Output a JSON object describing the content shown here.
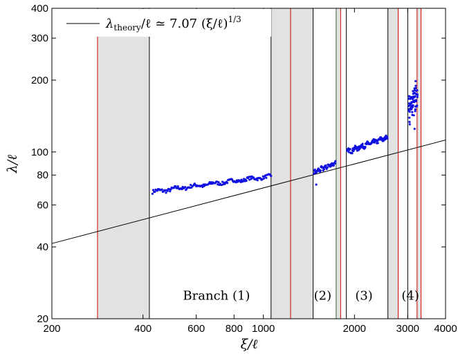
{
  "chart_data": {
    "type": "scatter",
    "title": "",
    "xlabel": "ξ/ℓ",
    "ylabel": "λ/ℓ",
    "xscale": "log",
    "yscale": "log",
    "xlim": [
      200,
      4000
    ],
    "ylim": [
      20,
      400
    ],
    "grid": false,
    "legend": {
      "position": "top-left",
      "entries": [
        {
          "label_main": "λ",
          "label_sub": "theory",
          "label_rest": "/ℓ ≃ 7.07 (ξ/ℓ)",
          "label_sup": "1/3"
        }
      ]
    },
    "x_ticks": [
      {
        "value": 200,
        "label": "200"
      },
      {
        "value": 400,
        "label": "400"
      },
      {
        "value": 600,
        "label": "600"
      },
      {
        "value": 800,
        "label": "800"
      },
      {
        "value": 1000,
        "label": "1000"
      },
      {
        "value": 2000,
        "label": "2000"
      },
      {
        "value": 3000,
        "label": "3000"
      },
      {
        "value": 4000,
        "label": "4000"
      }
    ],
    "y_ticks": [
      {
        "value": 20,
        "label": "20"
      },
      {
        "value": 40,
        "label": "40"
      },
      {
        "value": 60,
        "label": "60"
      },
      {
        "value": 80,
        "label": "80"
      },
      {
        "value": 100,
        "label": "100"
      },
      {
        "value": 200,
        "label": "200"
      },
      {
        "value": 300,
        "label": "300"
      },
      {
        "value": 400,
        "label": "400"
      }
    ],
    "theory_line": {
      "coefficient": 7.07,
      "exponent": 0.3333,
      "color": "#000000"
    },
    "shaded_bands": [
      {
        "x_start": 283,
        "x_end": 420,
        "start_line_color": "#cc0000",
        "end_line_color": "#000000"
      },
      {
        "x_start": 1060,
        "x_end": 1460,
        "start_line_color": "#000000",
        "end_line_color": "#000000",
        "red_line_x": 1230
      },
      {
        "x_start": 1740,
        "x_end": 1800,
        "start_line_color": "#336633",
        "end_line_color": "#cc0000"
      },
      {
        "x_start": 2580,
        "x_end": 2790,
        "start_line_color": "#000000",
        "end_line_color": "#cc0000"
      },
      {
        "x_start": 3220,
        "x_end": 3320,
        "start_line_color": "#cc0000",
        "end_line_color": "#cc0000"
      }
    ],
    "extra_lines": [
      {
        "x": 1880,
        "color": "#000000"
      },
      {
        "x": 3000,
        "color": "#000000"
      }
    ],
    "band_fill_color": "#e2e2e2",
    "branch_labels": [
      {
        "text": "Branch (1)",
        "x": 700,
        "y": 25
      },
      {
        "text": "(2)",
        "x": 1570,
        "y": 25
      },
      {
        "text": "(3)",
        "x": 2150,
        "y": 25
      },
      {
        "text": "(4)",
        "x": 3060,
        "y": 25
      }
    ],
    "series": [
      {
        "color": "#1010e0",
        "branches": [
          {
            "x_start": 430,
            "x_end": 1060,
            "y_start": 68,
            "y_end": 79,
            "wiggle": 1.2,
            "count": 150
          },
          {
            "x_start": 1470,
            "x_end": 1730,
            "y_start": 82,
            "y_end": 90,
            "wiggle": 1.5,
            "count": 50
          },
          {
            "x_start": 1890,
            "x_end": 2570,
            "y_start": 100,
            "y_end": 115,
            "wiggle": 2.0,
            "count": 120
          },
          {
            "x_start": 3020,
            "x_end": 3230,
            "y_start": 150,
            "y_end": 172,
            "wiggle": 15,
            "count": 70
          }
        ],
        "outliers": [
          {
            "x": 1495,
            "y": 73
          },
          {
            "x": 3185,
            "y": 198
          },
          {
            "x": 3160,
            "y": 125
          }
        ]
      }
    ]
  }
}
